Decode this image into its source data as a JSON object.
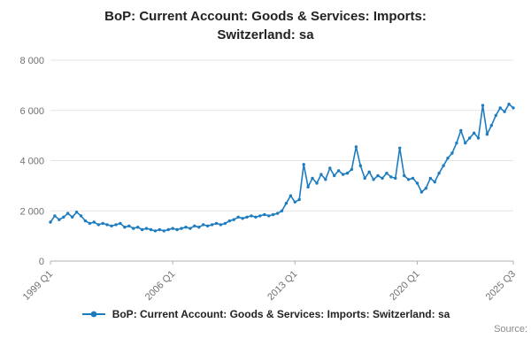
{
  "chart_data": {
    "type": "line",
    "title": "BoP: Current Account: Goods & Services: Imports: Switzerland: sa",
    "x_tick_labels": [
      "1999 Q1",
      "2006 Q1",
      "2013 Q1",
      "2020 Q1",
      "2025 Q3"
    ],
    "x_tick_indices": [
      0,
      28,
      56,
      84,
      106
    ],
    "x_range": [
      "1999 Q1",
      "2025 Q3"
    ],
    "x_frequency": "quarterly",
    "y_ticks": [
      0,
      2000,
      4000,
      6000,
      8000
    ],
    "y_tick_labels": [
      "0",
      "2 000",
      "4 000",
      "6 000",
      "8 000"
    ],
    "ylim": [
      0,
      8000
    ],
    "grid": "horizontal",
    "legend_position": "bottom",
    "series": [
      {
        "name": "BoP: Current Account: Goods & Services: Imports: Switzerland: sa",
        "color": "#1d7cc0",
        "marker": "dot",
        "values": [
          1550,
          1800,
          1650,
          1750,
          1900,
          1750,
          1950,
          1800,
          1600,
          1500,
          1550,
          1450,
          1500,
          1450,
          1400,
          1450,
          1500,
          1350,
          1400,
          1300,
          1350,
          1250,
          1300,
          1250,
          1200,
          1250,
          1200,
          1250,
          1300,
          1250,
          1300,
          1350,
          1300,
          1400,
          1350,
          1450,
          1400,
          1450,
          1500,
          1450,
          1500,
          1600,
          1650,
          1750,
          1700,
          1750,
          1800,
          1750,
          1800,
          1850,
          1800,
          1850,
          1900,
          2000,
          2300,
          2600,
          2350,
          2450,
          3850,
          2950,
          3300,
          3100,
          3450,
          3250,
          3700,
          3400,
          3600,
          3450,
          3500,
          3650,
          4550,
          3800,
          3300,
          3550,
          3250,
          3400,
          3300,
          3500,
          3350,
          3300,
          4500,
          3400,
          3250,
          3300,
          3100,
          2750,
          2900,
          3300,
          3150,
          3500,
          3800,
          4100,
          4300,
          4700,
          5200,
          4700,
          4900,
          5100,
          4900,
          6200,
          5050,
          5400,
          5800,
          6100,
          5950,
          6250,
          6100
        ]
      }
    ]
  },
  "footer": {
    "source_label": "Source:"
  }
}
